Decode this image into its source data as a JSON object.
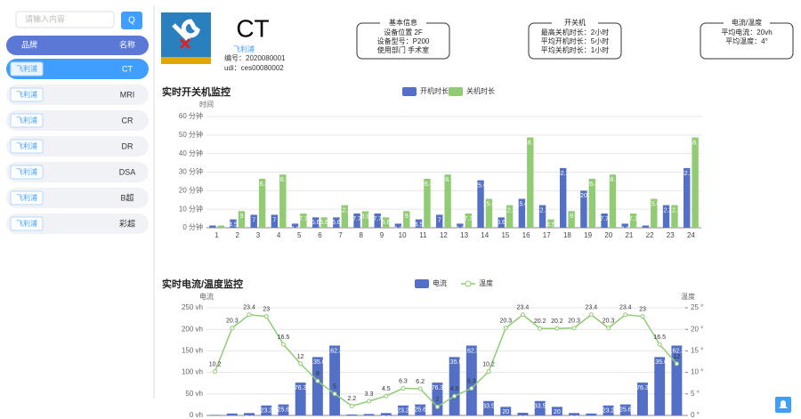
{
  "sidebar": {
    "search_placeholder": "请输入内容",
    "search_button": "Q",
    "header": [
      "品牌",
      "名称"
    ],
    "items": [
      {
        "brand": "飞利浦",
        "name": "CT"
      },
      {
        "brand": "飞利浦",
        "name": "MRI"
      },
      {
        "brand": "飞利浦",
        "name": "CR"
      },
      {
        "brand": "飞利浦",
        "name": "DR"
      },
      {
        "brand": "飞利浦",
        "name": "DSA"
      },
      {
        "brand": "飞利浦",
        "name": "B超"
      },
      {
        "brand": "飞利浦",
        "name": "彩超"
      }
    ]
  },
  "device": {
    "name": "CT",
    "brand": "飞利浦",
    "code": "编号：2020080001",
    "udi": "udi：ces00080002"
  },
  "info_boxes": [
    {
      "title": "基本信息",
      "lines": [
        "设备位置 2F",
        "设备型号：P200",
        "使用部门 手术室"
      ]
    },
    {
      "title": "开关机",
      "lines": [
        "最高关机时长：2小时",
        "平均开机时长：5小时",
        "平均关机时长：1小时"
      ]
    },
    {
      "title": "电流/温度",
      "lines": [
        "平均电流：20vh",
        "平均温度：4°"
      ]
    }
  ],
  "chart_data": [
    {
      "type": "bar",
      "title": "实时开关机监控",
      "y_label": "时间",
      "categories": [
        "1",
        "2",
        "3",
        "4",
        "5",
        "6",
        "7",
        "8",
        "9",
        "10",
        "11",
        "12",
        "13",
        "14",
        "15",
        "16",
        "17",
        "18",
        "19",
        "20",
        "21",
        "22",
        "23",
        "24"
      ],
      "series": [
        {
          "name": "开机时长",
          "color": "#5470c6",
          "values": [
            1.2,
            4.5,
            7,
            7,
            2.2,
            5.6,
            5.6,
            7.7,
            7.7,
            2.2,
            4.5,
            7,
            2.2,
            25.6,
            5.6,
            15.6,
            12.2,
            32.2,
            20,
            7.7,
            2.2,
            1.2,
            12.2,
            32.2
          ]
        },
        {
          "name": "关机时长",
          "color": "#91cc75",
          "values": [
            1.2,
            9,
            26.4,
            28.7,
            7.7,
            5.6,
            12.2,
            8.9,
            5.6,
            9,
            26.4,
            28.7,
            7.7,
            15.6,
            12.2,
            48.7,
            4.5,
            9,
            26.4,
            28.7,
            7.7,
            15.6,
            12.2,
            48.7
          ]
        }
      ],
      "ylim": [
        0,
        60
      ],
      "yticks": [
        {
          "value": 0,
          "label": "0 分钟"
        },
        {
          "value": 10,
          "label": "10 分钟"
        },
        {
          "value": 20,
          "label": "20 分钟"
        },
        {
          "value": 30,
          "label": "30 分钟"
        },
        {
          "value": 40,
          "label": "40 分钟"
        },
        {
          "value": 50,
          "label": "50 分钟"
        },
        {
          "value": 60,
          "label": "60 分钟"
        }
      ],
      "grid": true
    },
    {
      "type": "bar-line",
      "title": "实时电流/温度监控",
      "y_label": "电流",
      "y2_label": "温度",
      "series": [
        {
          "name": "电流",
          "color": "#5470c6",
          "values": [
            1.2,
            4.5,
            5.6,
            23.2,
            25.6,
            76.3,
            135.6,
            162.3,
            2.2,
            3.3,
            5.6,
            23.2,
            25.6,
            76.3,
            135.6,
            162.3,
            33.5,
            20,
            6.3,
            33.5,
            20,
            5.6,
            4.5,
            23.2,
            25.6,
            76.3,
            135.6,
            162.3
          ]
        },
        {
          "name": "温度",
          "color": "#91cc75",
          "axis": "y2",
          "values": [
            10.2,
            20.3,
            23.4,
            23,
            16.5,
            12,
            8,
            5,
            2.2,
            3.3,
            4.5,
            6.3,
            6.2,
            2,
            4.5,
            6.3,
            10.2,
            20.3,
            23.4,
            20.2,
            20.2,
            20.3,
            23.4,
            20.3,
            23.4,
            23,
            16.5,
            12
          ]
        }
      ],
      "ylim": [
        0,
        250
      ],
      "yticks": [
        {
          "value": 0,
          "label": "0 vh"
        },
        {
          "value": 50,
          "label": "50 vh"
        },
        {
          "value": 100,
          "label": "100 vh"
        },
        {
          "value": 150,
          "label": "150 vh"
        },
        {
          "value": 200,
          "label": "200 vh"
        },
        {
          "value": 250,
          "label": "250 vh"
        }
      ],
      "y2lim": [
        0,
        25
      ],
      "y2ticks": [
        {
          "value": 0,
          "label": "0 °"
        },
        {
          "value": 5,
          "label": "5 °"
        },
        {
          "value": 10,
          "label": "10 °"
        },
        {
          "value": 15,
          "label": "15 °"
        },
        {
          "value": 20,
          "label": "20 °"
        },
        {
          "value": 25,
          "label": "25 °"
        }
      ],
      "grid": true
    }
  ]
}
